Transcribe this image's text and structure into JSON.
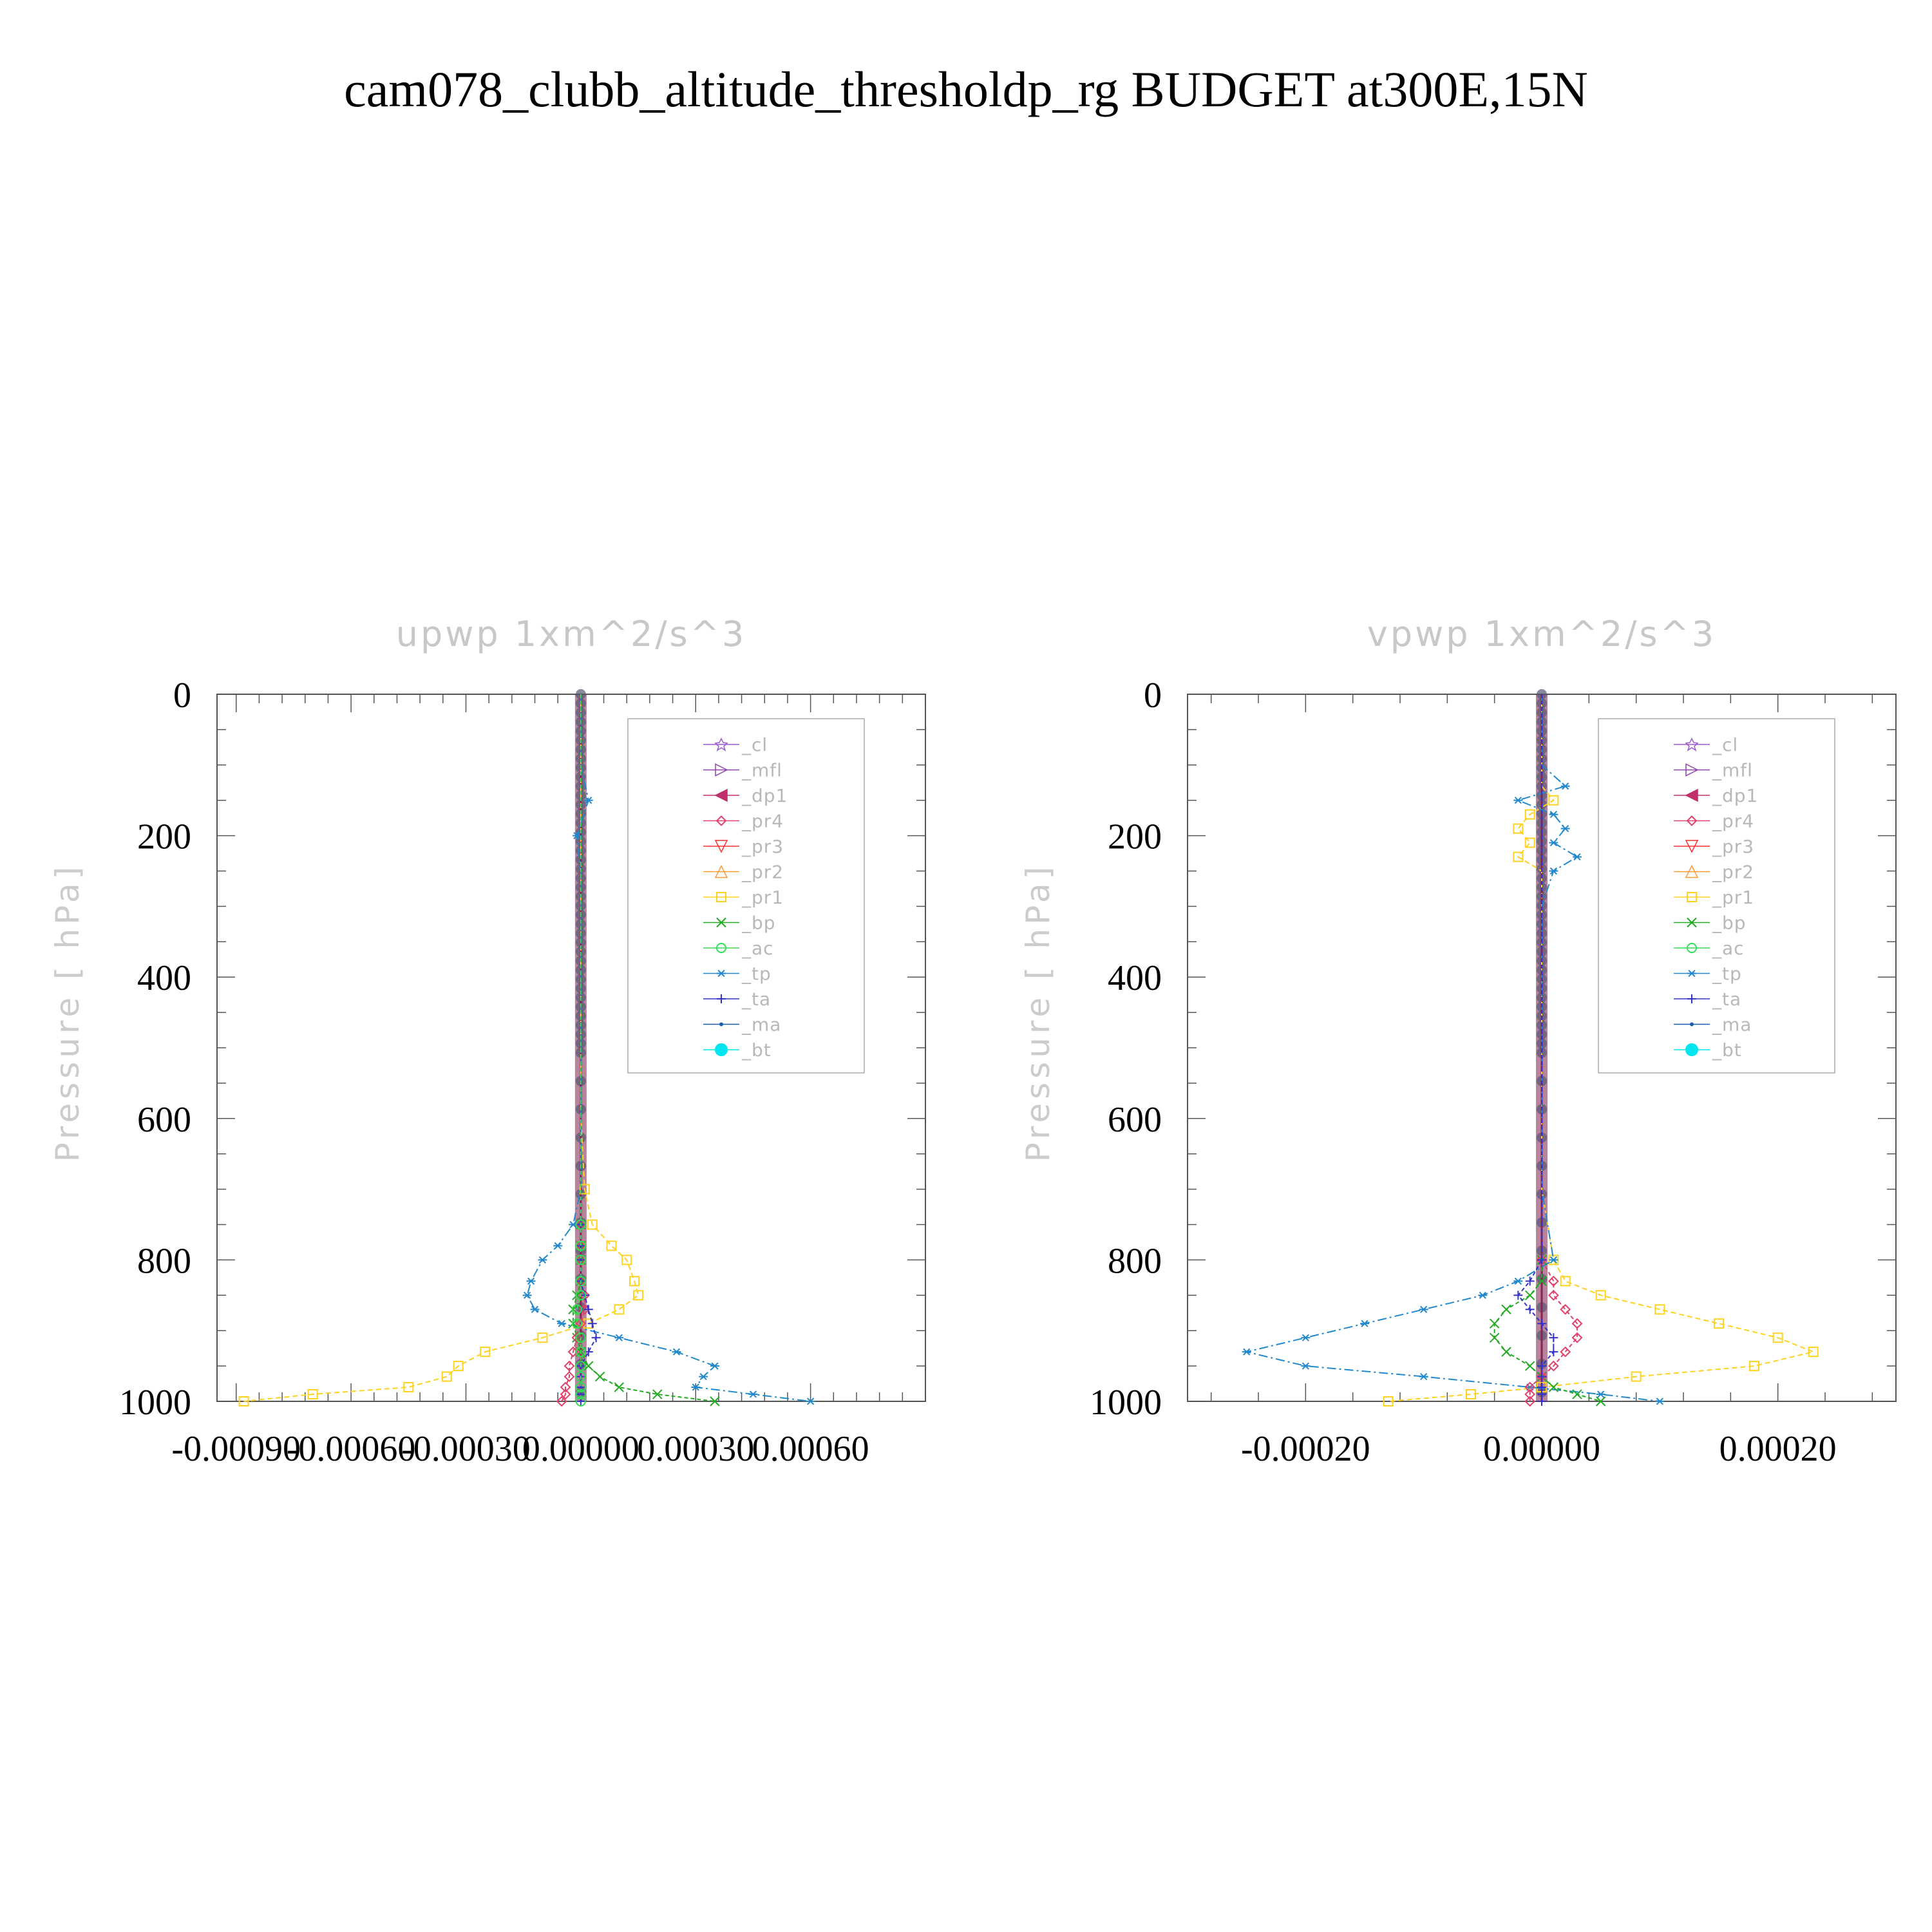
{
  "figure_title": "cam078_clubb_altitude_thresholdp_rg  BUDGET at300E,15N",
  "legend_labels": [
    "_cl",
    "_mfl",
    "_dp1",
    "_pr4",
    "_pr3",
    "_pr2",
    "_pr1",
    "_bp",
    "_ac",
    "_tp",
    "_ta",
    "_ma",
    "_bt"
  ],
  "series_colors": {
    "_cl": "#9b59d0",
    "_mfl": "#8e44ad",
    "_dp1": "#c0306a",
    "_pr4": "#e0406a",
    "_pr3": "#ff3030",
    "_pr2": "#ff9933",
    "_pr1": "#ffd21f",
    "_bp": "#22aa22",
    "_ac": "#33dd55",
    "_tp": "#2288cc",
    "_ta": "#3333cc",
    "_ma": "#1a5fb4",
    "_bt": "#00e5ee"
  },
  "chart_data": [
    {
      "type": "line",
      "title": "upwp    1xm^2/s^3",
      "ylabel": "Pressure  [ hPa]",
      "xlabel": "",
      "ylim": [
        1000,
        0
      ],
      "xlim": [
        -0.00095,
        0.0009
      ],
      "yticks": [
        "0",
        "200",
        "400",
        "600",
        "800",
        "1000"
      ],
      "xticks": [
        "-0.00090",
        "-0.00060",
        "-0.00030",
        "0.00000",
        "0.00030",
        "0.00060"
      ],
      "xtick_values": [
        -0.0009,
        -0.0006,
        -0.0003,
        0,
        0.0003,
        0.0006
      ],
      "levels": [
        0,
        50,
        100,
        150,
        200,
        250,
        300,
        400,
        500,
        600,
        700,
        750,
        780,
        800,
        830,
        850,
        870,
        890,
        910,
        930,
        950,
        965,
        980,
        990,
        1000
      ],
      "series": [
        {
          "name": "_pr1",
          "values": [
            0,
            0,
            0,
            0,
            0,
            0,
            0,
            0,
            0,
            0,
            1e-05,
            3e-05,
            8e-05,
            0.00012,
            0.00014,
            0.00015,
            0.0001,
            2e-05,
            -0.0001,
            -0.00025,
            -0.00032,
            -0.00035,
            -0.00045,
            -0.0007,
            -0.00088
          ]
        },
        {
          "name": "_tp",
          "values": [
            0,
            0,
            0,
            2e-05,
            -1e-05,
            0,
            0,
            0,
            0,
            0,
            0,
            -2e-05,
            -6e-05,
            -0.0001,
            -0.00013,
            -0.00014,
            -0.00012,
            -5e-05,
            0.0001,
            0.00025,
            0.00035,
            0.00032,
            0.0003,
            0.00045,
            0.0006
          ]
        },
        {
          "name": "_bp",
          "values": [
            0,
            0,
            0,
            0,
            0,
            0,
            0,
            0,
            0,
            0,
            0,
            0,
            0,
            0,
            0,
            -1e-05,
            -2e-05,
            -2e-05,
            -1e-05,
            0,
            2e-05,
            5e-05,
            0.0001,
            0.0002,
            0.00035
          ]
        },
        {
          "name": "_pr4",
          "values": [
            0,
            0,
            0,
            0,
            0,
            0,
            0,
            0,
            0,
            0,
            0,
            0,
            0,
            0,
            0,
            1e-05,
            1e-05,
            0,
            -1e-05,
            -2e-05,
            -3e-05,
            -3e-05,
            -4e-05,
            -4e-05,
            -5e-05
          ]
        },
        {
          "name": "_ta",
          "values": [
            0,
            0,
            0,
            0,
            0,
            0,
            0,
            0,
            0,
            0,
            0,
            0,
            0,
            0,
            0,
            1e-05,
            2e-05,
            3e-05,
            4e-05,
            2e-05,
            0,
            0,
            0,
            0,
            0
          ]
        },
        {
          "name": "_ac",
          "values": [
            0,
            0,
            0,
            0,
            0,
            0,
            0,
            0,
            0,
            0,
            0,
            0,
            0,
            0,
            0,
            0,
            -1e-05,
            -1e-05,
            0,
            0,
            0,
            0,
            0,
            0,
            0
          ]
        }
      ]
    },
    {
      "type": "line",
      "title": "vpwp    1xm^2/s^3",
      "ylabel": "Pressure  [ hPa]",
      "xlabel": "",
      "ylim": [
        1000,
        0
      ],
      "xlim": [
        -0.0003,
        0.0003
      ],
      "yticks": [
        "0",
        "200",
        "400",
        "600",
        "800",
        "1000"
      ],
      "xticks": [
        "-0.00020",
        "0.00000",
        "0.00020"
      ],
      "xtick_values": [
        -0.0002,
        0,
        0.0002
      ],
      "levels": [
        0,
        50,
        100,
        130,
        150,
        170,
        190,
        210,
        230,
        250,
        300,
        400,
        500,
        600,
        700,
        800,
        830,
        850,
        870,
        890,
        910,
        930,
        950,
        965,
        980,
        990,
        1000
      ],
      "series": [
        {
          "name": "_pr1",
          "values": [
            0,
            0,
            0,
            0,
            1e-05,
            -1e-05,
            -2e-05,
            -1e-05,
            -2e-05,
            0,
            0,
            0,
            0,
            0,
            0,
            1e-05,
            2e-05,
            5e-05,
            0.0001,
            0.00015,
            0.0002,
            0.00023,
            0.00018,
            8e-05,
            0,
            -6e-05,
            -0.00013
          ]
        },
        {
          "name": "_tp",
          "values": [
            0,
            0,
            0,
            2e-05,
            -2e-05,
            1e-05,
            2e-05,
            1e-05,
            3e-05,
            1e-05,
            0,
            0,
            0,
            0,
            0,
            1e-05,
            -2e-05,
            -5e-05,
            -0.0001,
            -0.00015,
            -0.0002,
            -0.00025,
            -0.0002,
            -0.0001,
            -1e-05,
            5e-05,
            0.0001
          ]
        },
        {
          "name": "_bp",
          "values": [
            0,
            0,
            0,
            0,
            0,
            0,
            0,
            0,
            0,
            0,
            0,
            0,
            0,
            0,
            0,
            0,
            0,
            -1e-05,
            -3e-05,
            -4e-05,
            -4e-05,
            -3e-05,
            -1e-05,
            0,
            1e-05,
            3e-05,
            5e-05
          ]
        },
        {
          "name": "_pr4",
          "values": [
            0,
            0,
            0,
            0,
            0,
            0,
            0,
            0,
            0,
            0,
            0,
            0,
            0,
            0,
            0,
            0,
            1e-05,
            1e-05,
            2e-05,
            3e-05,
            3e-05,
            2e-05,
            1e-05,
            0,
            -1e-05,
            -1e-05,
            -1e-05
          ]
        },
        {
          "name": "_ta",
          "values": [
            0,
            0,
            0,
            0,
            0,
            0,
            0,
            0,
            0,
            0,
            0,
            0,
            0,
            0,
            0,
            0,
            -1e-05,
            -2e-05,
            -1e-05,
            0,
            1e-05,
            1e-05,
            0,
            0,
            0,
            0,
            0
          ]
        }
      ]
    }
  ]
}
